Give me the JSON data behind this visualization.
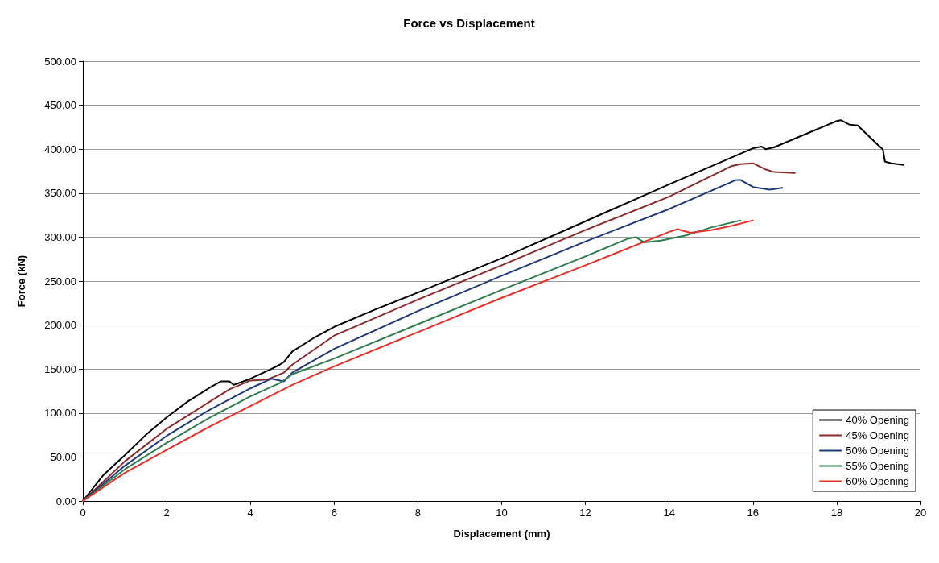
{
  "chart_data": {
    "type": "line",
    "title": "Force vs Displacement",
    "xlabel": "Displacement (mm)",
    "ylabel": "Force (kN)",
    "xlim": [
      0,
      20
    ],
    "xticks": [
      0,
      2,
      4,
      6,
      8,
      10,
      12,
      14,
      16,
      18,
      20
    ],
    "ylim": [
      0,
      500
    ],
    "yticks": [
      {
        "value": 0,
        "label": "0.00"
      },
      {
        "value": 50,
        "label": "50.00"
      },
      {
        "value": 100,
        "label": "100.00"
      },
      {
        "value": 150,
        "label": "150.00"
      },
      {
        "value": 200,
        "label": "200.00"
      },
      {
        "value": 250,
        "label": "250.00"
      },
      {
        "value": 300,
        "label": "300.00"
      },
      {
        "value": 350,
        "label": "350.00"
      },
      {
        "value": 400,
        "label": "400.00"
      },
      {
        "value": 450,
        "label": "450.00"
      },
      {
        "value": 500,
        "label": "500.00"
      }
    ],
    "grid": "y",
    "legend": "bottom right",
    "marker": "none",
    "line_style": "solid",
    "series": [
      {
        "name": "40% Opening",
        "color": "#000000",
        "x": [
          0,
          0.5,
          1,
          1.5,
          2,
          2.5,
          3,
          3.3,
          3.5,
          3.6,
          4,
          4.5,
          4.7,
          4.8,
          5,
          5.5,
          6,
          7,
          8,
          10,
          12,
          14,
          16,
          16.2,
          16.3,
          16.5,
          18,
          18.1,
          18.3,
          18.5,
          19,
          19.1,
          19.15,
          19.3,
          19.6
        ],
        "values": [
          0,
          30,
          52,
          75,
          95,
          113,
          128,
          136,
          136,
          132,
          139,
          150,
          155,
          158,
          170,
          185,
          198,
          218,
          237,
          276,
          318,
          360,
          401,
          403,
          400,
          402,
          432,
          433,
          428,
          427,
          404,
          400,
          386,
          384,
          382
        ]
      },
      {
        "name": "45% Opening",
        "color": "#8b2a2a",
        "x": [
          0,
          1,
          2,
          3,
          3.5,
          4,
          4.4,
          4.8,
          5,
          6,
          8,
          10,
          12,
          14,
          15.5,
          15.7,
          16,
          16.3,
          16.5,
          17
        ],
        "values": [
          0,
          45,
          82,
          112,
          127,
          137,
          138,
          146,
          155,
          188,
          229,
          268,
          308,
          346,
          381,
          383,
          384,
          377,
          374,
          373
        ]
      },
      {
        "name": "50% Opening",
        "color": "#1f3a7a",
        "x": [
          0,
          1,
          2,
          3,
          4,
          4.5,
          4.8,
          5,
          6,
          8,
          10,
          12,
          14,
          15.6,
          15.7,
          16,
          16.4,
          16.7
        ],
        "values": [
          0,
          40,
          74,
          103,
          128,
          139,
          136,
          146,
          173,
          216,
          256,
          295,
          332,
          365,
          365,
          357,
          354,
          356
        ]
      },
      {
        "name": "55% Opening",
        "color": "#2e7d4f",
        "x": [
          0,
          1,
          2,
          3,
          4,
          4.7,
          5,
          6,
          8,
          10,
          12,
          13,
          13.2,
          13.4,
          13.8,
          14.4,
          15,
          15.7
        ],
        "values": [
          0,
          36,
          66,
          94,
          119,
          134,
          144,
          162,
          201,
          240,
          278,
          298,
          300,
          294,
          296,
          302,
          311,
          319
        ]
      },
      {
        "name": "60% Opening",
        "color": "#e8302a",
        "x": [
          0,
          1,
          2,
          3,
          4,
          5,
          6,
          8,
          10,
          12,
          14,
          14.2,
          14.5,
          15,
          15.5,
          16
        ],
        "values": [
          0,
          32,
          58,
          84,
          108,
          132,
          153,
          192,
          231,
          268,
          306,
          309,
          305,
          308,
          313,
          319
        ]
      }
    ]
  }
}
